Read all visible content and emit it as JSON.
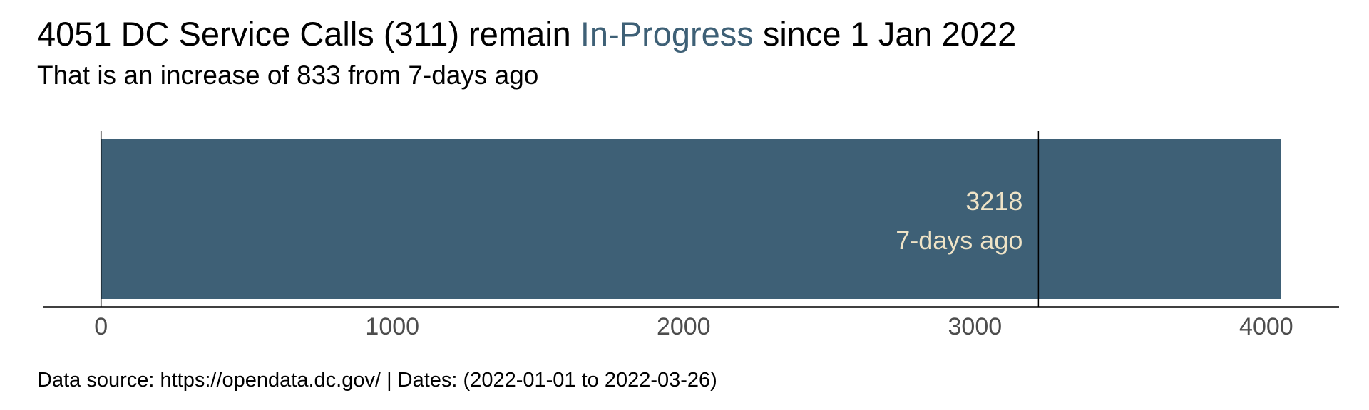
{
  "header": {
    "title_pre": "4051 DC Service Calls (311) remain ",
    "title_highlight": "In-Progress",
    "title_post": " since 1 Jan 2022",
    "subtitle": "That is an increase of 833 from 7-days ago"
  },
  "footer": {
    "caption": "Data source: https://opendata.dc.gov/ | Dates: (2022-01-01 to 2022-03-26)"
  },
  "colors": {
    "bar": "#3e6076",
    "bar_label": "#efe3c6",
    "axis_text": "#4d4d4d",
    "highlight": "#3e6076"
  },
  "chart_data": {
    "type": "bar",
    "orientation": "horizontal",
    "title": "4051 DC Service Calls (311) remain In-Progress since 1 Jan 2022",
    "subtitle": "That is an increase of 833 from 7-days ago",
    "xlabel": "",
    "ylabel": "",
    "values": [
      4051
    ],
    "xlim": [
      -200,
      4250
    ],
    "x_ticks": [
      0,
      1000,
      2000,
      3000,
      4000
    ],
    "reference_lines": [
      {
        "value": 0
      },
      {
        "value": 3218,
        "label_value": "3218",
        "label_text": "7-days ago"
      }
    ],
    "grid": false,
    "legend": "none"
  }
}
